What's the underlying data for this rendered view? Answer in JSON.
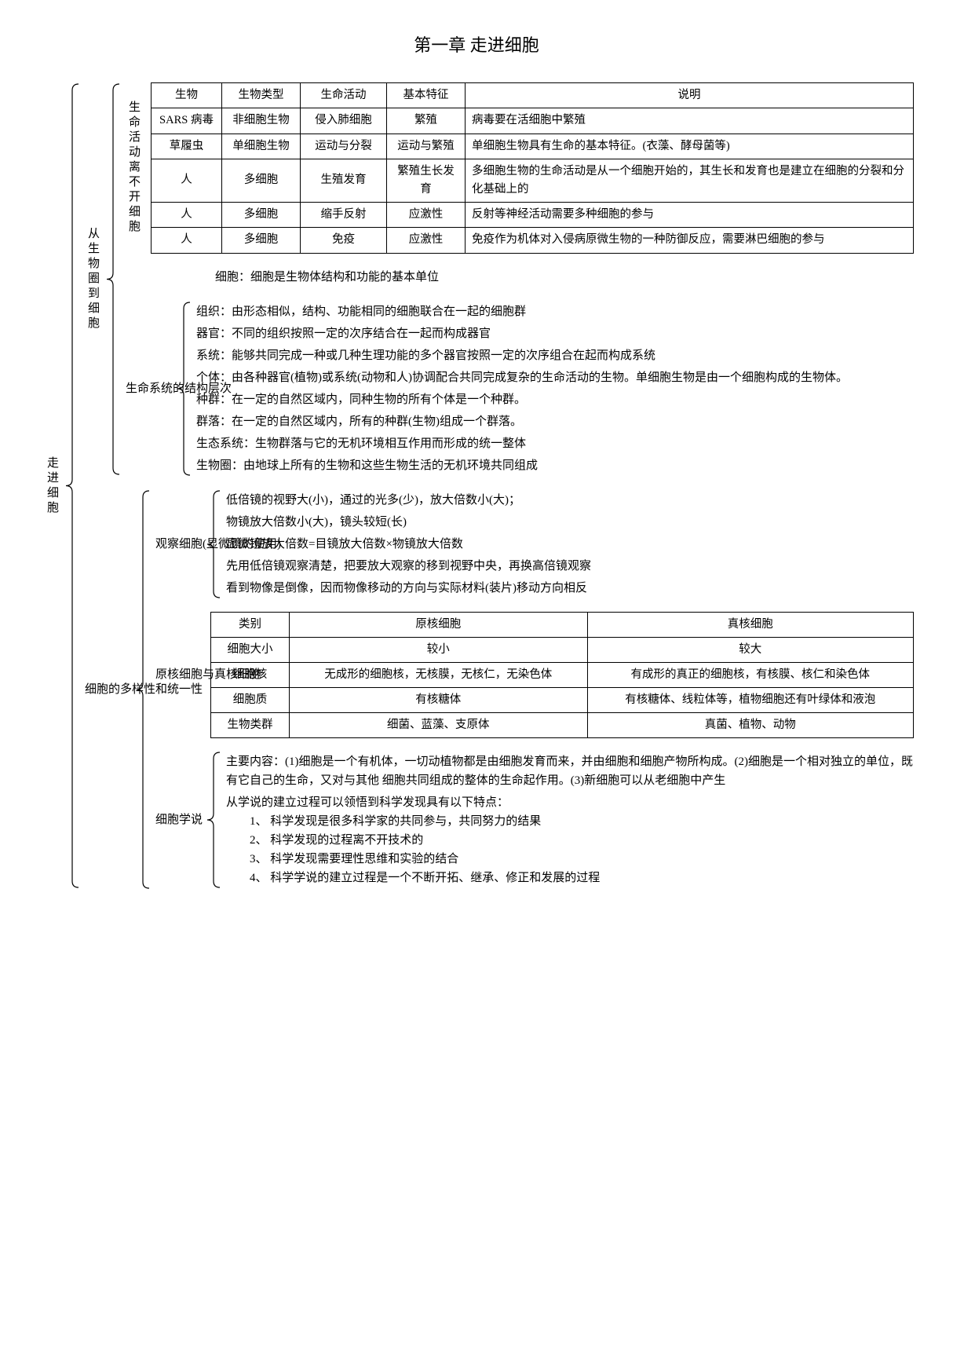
{
  "title": "第一章 走进细胞",
  "root_label": "走进细胞",
  "b1": {
    "label": "从生物圈到细胞",
    "sec1": {
      "label": "生命活动离不开细胞",
      "table": {
        "headers": [
          "生物",
          "生物类型",
          "生命活动",
          "基本特征",
          "说明"
        ],
        "rows": [
          [
            "SARS 病毒",
            "非细胞生物",
            "侵入肺细胞",
            "繁殖",
            "病毒要在活细胞中繁殖"
          ],
          [
            "草履虫",
            "单细胞生物",
            "运动与分裂",
            "运动与繁殖",
            "单细胞生物具有生命的基本特征。(衣藻、酵母菌等)"
          ],
          [
            "人",
            "多细胞",
            "生殖发育",
            "繁殖生长发育",
            "多细胞生物的生命活动是从一个细胞开始的，其生长和发育也是建立在细胞的分裂和分化基础上的"
          ],
          [
            "人",
            "多细胞",
            "缩手反射",
            "应激性",
            "反射等神经活动需要多种细胞的参与"
          ],
          [
            "人",
            "多细胞",
            "免疫",
            "应激性",
            "免疫作为机体对入侵病原微生物的一种防御反应，需要淋巴细胞的参与"
          ]
        ],
        "col_widths": [
          "90px",
          "100px",
          "110px",
          "100px",
          "auto"
        ]
      }
    },
    "cell_def": "细胞：细胞是生物体结构和功能的基本单位",
    "sec2": {
      "label": "生命系统的结构层次",
      "items": [
        "组织：由形态相似，结构、功能相同的细胞联合在一起的细胞群",
        "器官：不同的组织按照一定的次序结合在一起而构成器官",
        "系统：能够共同完成一种或几种生理功能的多个器官按照一定的次序组合在起而构成系统",
        "个体：由各种器官(植物)或系统(动物和人)协调配合共同完成复杂的生命活动的生物。单细胞生物是由一个细胞构成的生物体。",
        "种群：在一定的自然区域内，同种生物的所有个体是一个种群。",
        "群落：在一定的自然区域内，所有的种群(生物)组成一个群落。",
        "生态系统：生物群落与它的无机环境相互作用而形成的统一整体",
        "生物圈：由地球上所有的生物和这些生物生活的无机环境共同组成"
      ]
    }
  },
  "b2": {
    "label": "细胞的多样性和统一性",
    "sec1": {
      "label": "观察细胞(显微镜的使用)",
      "items": [
        "低倍镜的视野大(小)，通过的光多(少)，放大倍数小(大)；",
        "物镜放大倍数小(大)，镜头较短(长)",
        "显微镜放大倍数=目镜放大倍数×物镜放大倍数",
        "先用低倍镜观察清楚，把要放大观察的移到视野中央，再换高倍镜观察",
        "看到物像是倒像，因而物像移动的方向与实际材料(装片)移动方向相反"
      ]
    },
    "sec2": {
      "label": "原核细胞与真核细胞",
      "table": {
        "headers": [
          "类别",
          "原核细胞",
          "真核细胞"
        ],
        "rows": [
          [
            "细胞大小",
            "较小",
            "较大"
          ],
          [
            "细胞核",
            "无成形的细胞核，无核膜，无核仁，无染色体",
            "有成形的真正的细胞核，有核膜、核仁和染色体"
          ],
          [
            "细胞质",
            "有核糖体",
            "有核糖体、线粒体等，植物细胞还有叶绿体和液泡"
          ],
          [
            "生物类群",
            "细菌、蓝藻、支原体",
            "真菌、植物、动物"
          ]
        ],
        "col_widths": [
          "100px",
          "auto",
          "auto"
        ]
      }
    },
    "sec3": {
      "label": "细胞学说",
      "main": "主要内容：(1)细胞是一个有机体，一切动植物都是由细胞发育而来，并由细胞和细胞产物所构成。(2)细胞是一个相对独立的单位，既有它自己的生命，又对与其他 细胞共同组成的整体的生命起作用。(3)新细胞可以从老细胞中产生",
      "intro": "从学说的建立过程可以领悟到科学发现具有以下特点：",
      "points": [
        "1、 科学发现是很多科学家的共同参与，共同努力的结果",
        "2、 科学发现的过程离不开技术的",
        "3、 科学发现需要理性思维和实验的结合",
        "4、 科学学说的建立过程是一个不断开拓、继承、修正和发展的过程"
      ]
    }
  }
}
